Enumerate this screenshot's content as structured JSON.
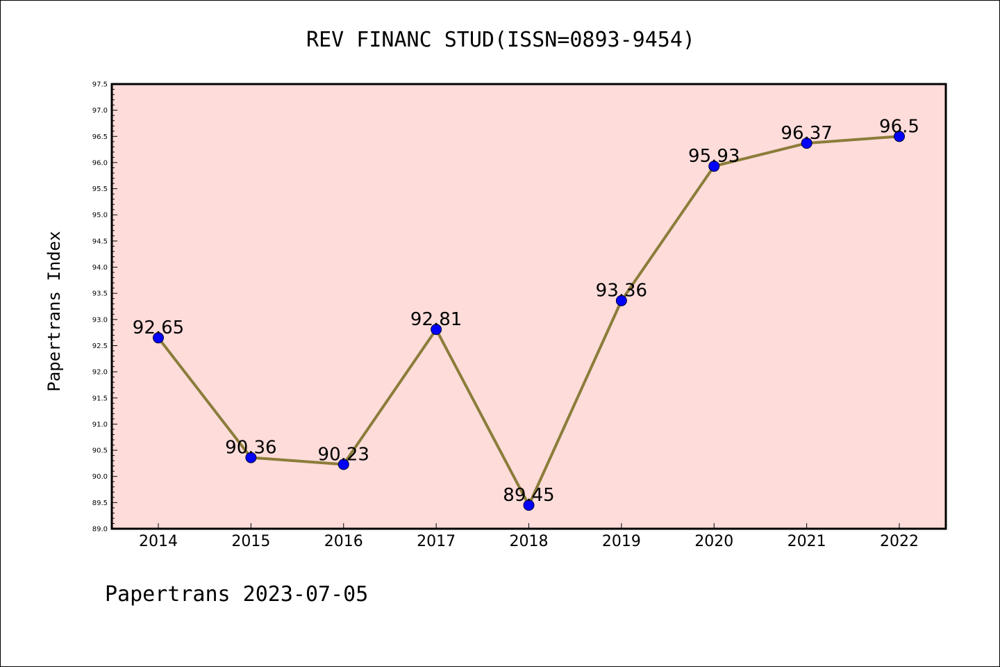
{
  "chart_data": {
    "type": "line",
    "title": "REV FINANC STUD(ISSN=0893-9454)",
    "xlabel": "",
    "ylabel": "Papertrans Index",
    "categories": [
      "2014",
      "2015",
      "2016",
      "2017",
      "2018",
      "2019",
      "2020",
      "2021",
      "2022"
    ],
    "series": [
      {
        "values": [
          92.65,
          90.36,
          90.23,
          92.81,
          89.45,
          93.36,
          95.93,
          96.37,
          96.5
        ],
        "labels": [
          "92.65",
          "90.36",
          "90.23",
          "92.81",
          "89.45",
          "93.36",
          "95.93",
          "96.37",
          "96.5"
        ],
        "line_color": "#8b7d3a",
        "marker_color": "#0000ff"
      }
    ],
    "ylim": [
      89.0,
      97.5
    ],
    "yticks": [
      "89.0",
      "89.5",
      "90.0",
      "90.5",
      "91.0",
      "91.5",
      "92.0",
      "92.5",
      "93.0",
      "93.5",
      "94.0",
      "94.5",
      "95.0",
      "95.5",
      "96.0",
      "96.5",
      "97.0",
      "97.5"
    ],
    "grid": false,
    "plot_background": "#fddcda"
  },
  "footer": "Papertrans 2023-07-05"
}
